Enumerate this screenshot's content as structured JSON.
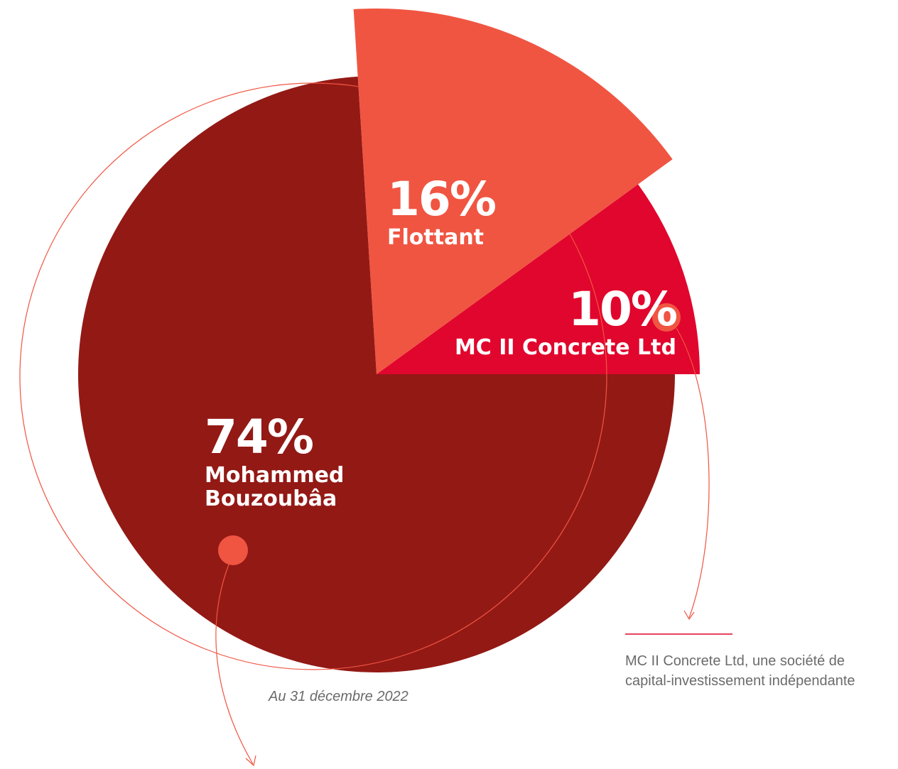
{
  "chart_data": {
    "type": "pie",
    "categories": [
      "MC II Concrete Ltd",
      "Flottant",
      "Mohammed Bouzoubâa"
    ],
    "values": [
      10,
      16,
      74
    ],
    "value_labels": [
      "10%",
      "16%",
      "74%"
    ],
    "colors": [
      "#e1062d",
      "#f05542",
      "#931915"
    ],
    "annotation": "Au 31 décembre 2022",
    "note": "MC II Concrete Ltd, une société de capital-investissement indépendante"
  }
}
